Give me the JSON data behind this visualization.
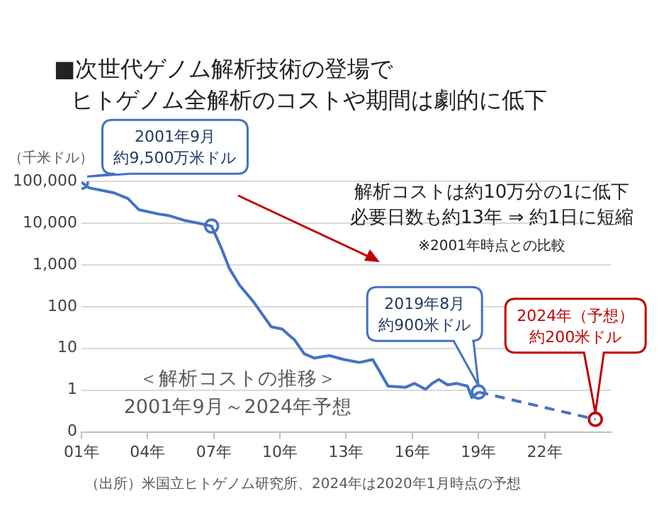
{
  "chart_data": {
    "type": "line",
    "title": "■次世代ゲノム解析技術の登場で",
    "subtitle": "ヒトゲノム全解析のコストや期間は劇的に低下",
    "ylabel": "（千米ドル）",
    "log": "y",
    "grid": "y",
    "legend": false,
    "xlim": [
      1,
      25
    ],
    "xticks": [
      {
        "value": 1,
        "label": "01年"
      },
      {
        "value": 4,
        "label": "04年"
      },
      {
        "value": 7,
        "label": "07年"
      },
      {
        "value": 10,
        "label": "10年"
      },
      {
        "value": 13,
        "label": "13年"
      },
      {
        "value": 16,
        "label": "16年"
      },
      {
        "value": 19,
        "label": "19年"
      },
      {
        "value": 22,
        "label": "22年"
      }
    ],
    "ylim": [
      0.1,
      100000
    ],
    "yticks": [
      {
        "value": 0.1,
        "label": "0"
      },
      1,
      10,
      100,
      {
        "value": 1000,
        "label": "1,000"
      },
      {
        "value": 10000,
        "label": "10,000"
      },
      {
        "value": 100000,
        "label": "100,000"
      }
    ],
    "series": [
      {
        "color": "#4472c4",
        "marker": "none",
        "line_style": "solid",
        "x": [
          1,
          1.34,
          2.48,
          3.1,
          3.6,
          4.5,
          5,
          5.65,
          6.3,
          6.9,
          7.36,
          7.7,
          8.16,
          8.8,
          9.6,
          10.1,
          10.4,
          10.66,
          11.1,
          11.57,
          11.8,
          12.25,
          12.9,
          13.6,
          14.2,
          14.4,
          14.9,
          15.7,
          16.1,
          16.6,
          16.9,
          17.2,
          17.6,
          18,
          18.5,
          18.7,
          19
        ],
        "values": [
          95000,
          70000,
          53000,
          39000,
          21000,
          16500,
          15000,
          11700,
          10000,
          8500,
          2400,
          830,
          330,
          130,
          33,
          29,
          21,
          16,
          7.4,
          5.8,
          6.2,
          6.7,
          5.4,
          4.6,
          5.4,
          3.6,
          1.25,
          1.17,
          1.45,
          1.05,
          1.45,
          1.8,
          1.34,
          1.45,
          1.25,
          0.66,
          0.9
        ]
      },
      {
        "color": "#4472c4",
        "marker": "none",
        "line_style": "dashed",
        "x": [
          19,
          24.3
        ],
        "values": [
          0.9,
          0.2
        ]
      },
      {
        "type": "scatter",
        "color": "#4472c4",
        "marker": "circle",
        "x": [
          1,
          6.9,
          19
        ],
        "values": [
          95000,
          8500,
          0.9
        ]
      },
      {
        "type": "scatter",
        "color": "#c00000",
        "marker": "circle",
        "x": [
          24.3
        ],
        "values": [
          0.2
        ]
      }
    ],
    "annotations": [
      "2001年9月",
      "約9,500万米ドル",
      "2019年8月",
      "約900米ドル",
      "2024年（予想）",
      "約200米ドル",
      "解析コストは約10万分の1に低下",
      "必要日数も約13年 ⇒ 約1日に短縮",
      "※2001年時点との比較",
      "＜解析コストの推移＞",
      "2001年9月～2024年予想",
      "（出所）米国立ヒトゲノム研究所、2024年は2020年1月時点の予想"
    ]
  }
}
